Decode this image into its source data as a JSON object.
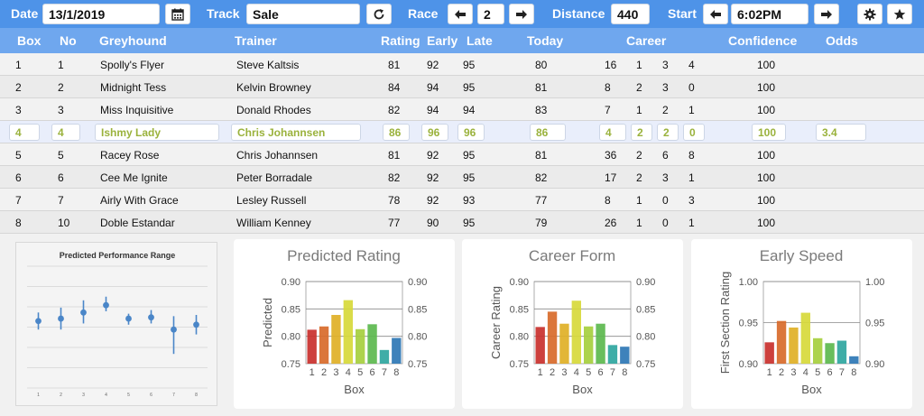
{
  "toolbar": {
    "date_label": "Date",
    "date_value": "13/1/2019",
    "track_label": "Track",
    "track_value": "Sale",
    "race_label": "Race",
    "race_value": "2",
    "distance_label": "Distance",
    "distance_value": "440",
    "start_label": "Start",
    "start_value": "6:02PM",
    "icons": [
      "calendar-icon",
      "refresh-icon",
      "arrow-left-icon",
      "arrow-right-icon",
      "gear-icon",
      "star-icon"
    ]
  },
  "table": {
    "headers": {
      "box": "Box",
      "no": "No",
      "greyhound": "Greyhound",
      "trainer": "Trainer",
      "rating": "Rating",
      "early": "Early",
      "late": "Late",
      "today": "Today",
      "career": "Career",
      "confidence": "Confidence",
      "odds": "Odds"
    },
    "selected_index": 3,
    "rows": [
      {
        "box": "1",
        "no": "1",
        "greyhound": "Spolly's Flyer",
        "trainer": "Steve Kaltsis",
        "rating": "81",
        "early": "92",
        "late": "95",
        "today": "80",
        "c1": "16",
        "c2": "1",
        "c3": "3",
        "c4": "4",
        "confidence": "100",
        "odds": ""
      },
      {
        "box": "2",
        "no": "2",
        "greyhound": "Midnight Tess",
        "trainer": "Kelvin Browney",
        "rating": "84",
        "early": "94",
        "late": "95",
        "today": "81",
        "c1": "8",
        "c2": "2",
        "c3": "3",
        "c4": "0",
        "confidence": "100",
        "odds": ""
      },
      {
        "box": "3",
        "no": "3",
        "greyhound": "Miss Inquisitive",
        "trainer": "Donald Rhodes",
        "rating": "82",
        "early": "94",
        "late": "94",
        "today": "83",
        "c1": "7",
        "c2": "1",
        "c3": "2",
        "c4": "1",
        "confidence": "100",
        "odds": ""
      },
      {
        "box": "4",
        "no": "4",
        "greyhound": "Ishmy Lady",
        "trainer": "Chris Johannsen",
        "rating": "86",
        "early": "96",
        "late": "96",
        "today": "86",
        "c1": "4",
        "c2": "2",
        "c3": "2",
        "c4": "0",
        "confidence": "100",
        "odds": "3.4"
      },
      {
        "box": "5",
        "no": "5",
        "greyhound": "Racey Rose",
        "trainer": "Chris Johannsen",
        "rating": "81",
        "early": "92",
        "late": "95",
        "today": "81",
        "c1": "36",
        "c2": "2",
        "c3": "6",
        "c4": "8",
        "confidence": "100",
        "odds": ""
      },
      {
        "box": "6",
        "no": "6",
        "greyhound": "Cee Me Ignite",
        "trainer": "Peter Borradale",
        "rating": "82",
        "early": "92",
        "late": "95",
        "today": "82",
        "c1": "17",
        "c2": "2",
        "c3": "3",
        "c4": "1",
        "confidence": "100",
        "odds": ""
      },
      {
        "box": "7",
        "no": "7",
        "greyhound": "Airly With Grace",
        "trainer": "Lesley Russell",
        "rating": "78",
        "early": "92",
        "late": "93",
        "today": "77",
        "c1": "8",
        "c2": "1",
        "c3": "0",
        "c4": "3",
        "confidence": "100",
        "odds": ""
      },
      {
        "box": "8",
        "no": "10",
        "greyhound": "Doble Estandar",
        "trainer": "William Kenney",
        "rating": "77",
        "early": "90",
        "late": "95",
        "today": "79",
        "c1": "26",
        "c2": "1",
        "c3": "0",
        "c4": "1",
        "confidence": "100",
        "odds": ""
      }
    ]
  },
  "bar_colors": [
    "#c9302c",
    "#d86a2a",
    "#e0b026",
    "#d7d93a",
    "#a6cf3e",
    "#5cb84e",
    "#2fa6a0",
    "#2e77b5"
  ],
  "chart_data": [
    {
      "id": "perf",
      "type": "scatter",
      "title": "Predicted Performance Range",
      "categories": [
        "1",
        "2",
        "3",
        "4",
        "5",
        "6",
        "7",
        "8"
      ],
      "values": [
        0.55,
        0.57,
        0.62,
        0.68,
        0.57,
        0.58,
        0.48,
        0.52
      ],
      "low": [
        0.48,
        0.48,
        0.53,
        0.63,
        0.52,
        0.53,
        0.28,
        0.44
      ],
      "high": [
        0.62,
        0.66,
        0.72,
        0.75,
        0.61,
        0.64,
        0.59,
        0.6
      ],
      "ylim": [
        0,
        1
      ],
      "color": "#4a86c8"
    },
    {
      "id": "predicted",
      "type": "bar",
      "title": "Predicted Rating",
      "xlabel": "Box",
      "ylabel": "Predicted",
      "categories": [
        "1",
        "2",
        "3",
        "4",
        "5",
        "6",
        "7",
        "8"
      ],
      "values": [
        0.812,
        0.818,
        0.839,
        0.866,
        0.813,
        0.822,
        0.775,
        0.797
      ],
      "ylim": [
        0.75,
        0.9
      ],
      "yticks": [
        "0.75",
        "0.80",
        "0.85",
        "0.90"
      ],
      "ytick_values": [
        0.75,
        0.8,
        0.85,
        0.9
      ]
    },
    {
      "id": "career",
      "type": "bar",
      "title": "Career Form",
      "xlabel": "Box",
      "ylabel": "Career Rating",
      "categories": [
        "1",
        "2",
        "3",
        "4",
        "5",
        "6",
        "7",
        "8"
      ],
      "values": [
        0.817,
        0.845,
        0.823,
        0.865,
        0.818,
        0.823,
        0.784,
        0.781
      ],
      "ylim": [
        0.75,
        0.9
      ],
      "yticks": [
        "0.75",
        "0.80",
        "0.85",
        "0.90"
      ],
      "ytick_values": [
        0.75,
        0.8,
        0.85,
        0.9
      ]
    },
    {
      "id": "early",
      "type": "bar",
      "title": "Early Speed",
      "xlabel": "Box",
      "ylabel": "First Section Rating",
      "categories": [
        "1",
        "2",
        "3",
        "4",
        "5",
        "6",
        "7",
        "8"
      ],
      "values": [
        0.926,
        0.952,
        0.944,
        0.962,
        0.931,
        0.925,
        0.928,
        0.909
      ],
      "ylim": [
        0.9,
        1.0
      ],
      "yticks": [
        "0.90",
        "0.95",
        "1.00"
      ],
      "ytick_values": [
        0.9,
        0.95,
        1.0
      ]
    }
  ]
}
